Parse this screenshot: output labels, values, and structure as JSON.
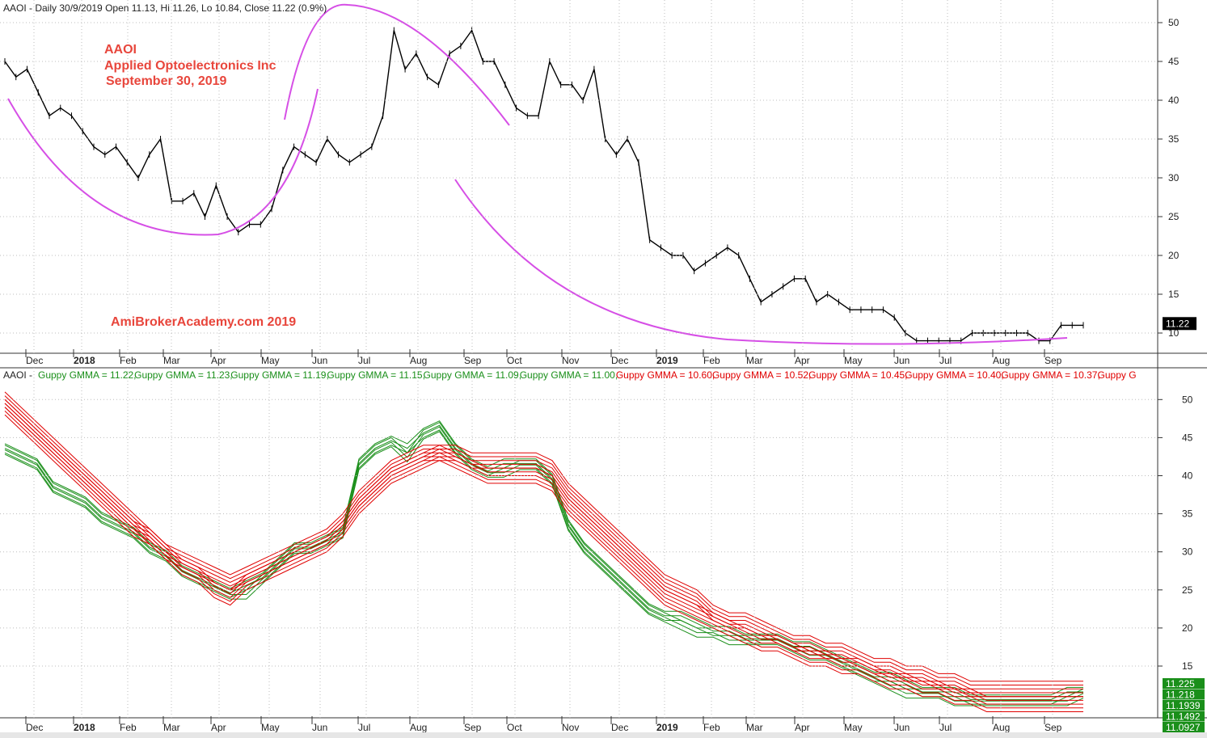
{
  "header_top": {
    "text": "AAOI - Daily 30/9/2019 Open 11.13, Hi 11.26, Lo 10.84, Close 11.22 (0.9%)"
  },
  "annotation": {
    "line1": "AAOI",
    "line2": "Applied Optoelectronics Inc",
    "line3": "September 30, 2019",
    "watermark": "AmiBrokerAcademy.com   2019",
    "color": "#e8463c"
  },
  "header_bottom": {
    "prefix": "AAOI - ",
    "items": [
      {
        "text": "Guppy GMMA = 11.22,",
        "color": "#1a8f1a"
      },
      {
        "text": "Guppy GMMA = 11.23,",
        "color": "#1a8f1a"
      },
      {
        "text": "Guppy GMMA = 11.19,",
        "color": "#1a8f1a"
      },
      {
        "text": "Guppy GMMA = 11.15,",
        "color": "#1a8f1a"
      },
      {
        "text": "Guppy GMMA = 11.09,",
        "color": "#1a8f1a"
      },
      {
        "text": "Guppy GMMA = 11.00,",
        "color": "#1a8f1a"
      },
      {
        "text": "Guppy GMMA = 10.60,",
        "color": "#e00000"
      },
      {
        "text": "Guppy GMMA = 10.52,",
        "color": "#e00000"
      },
      {
        "text": "Guppy GMMA = 10.45,",
        "color": "#e00000"
      },
      {
        "text": "Guppy GMMA = 10.40,",
        "color": "#e00000"
      },
      {
        "text": "Guppy GMMA = 10.37,",
        "color": "#e00000"
      },
      {
        "text": "Guppy G",
        "color": "#e00000"
      }
    ]
  },
  "months": [
    "Dec",
    "2018",
    "Feb",
    "Mar",
    "Apr",
    "May",
    "Jun",
    "Jul",
    "Aug",
    "Sep",
    "Oct",
    "Nov",
    "Dec",
    "2019",
    "Feb",
    "Mar",
    "Apr",
    "May",
    "Jun",
    "Jul",
    "Aug",
    "Sep"
  ],
  "bold_months": [
    "2018",
    "2019"
  ],
  "chart_data": [
    {
      "type": "line",
      "title": "AAOI - Daily 30/9/2019 Open 11.13, Hi 11.26, Lo 10.84, Close 11.22 (0.9%)",
      "ylim": [
        8,
        53
      ],
      "yticks": [
        10,
        15,
        20,
        25,
        30,
        35,
        40,
        45,
        50
      ],
      "last_value_label": "11.22",
      "series": [
        {
          "values": [
            45,
            43,
            44,
            41,
            38,
            39,
            38,
            36,
            34,
            33,
            34,
            32,
            30,
            33,
            35,
            27,
            27,
            28,
            25,
            29,
            25,
            23,
            24,
            24,
            26,
            31,
            34,
            33,
            32,
            35,
            33,
            32,
            33,
            34,
            38,
            49,
            44,
            46,
            43,
            42,
            46,
            47,
            49,
            45,
            45,
            42,
            39,
            38,
            38,
            45,
            42,
            42,
            40,
            44,
            35,
            33,
            35,
            32,
            22,
            21,
            20,
            20,
            18,
            19,
            20,
            21,
            20,
            17,
            14,
            15,
            16,
            17,
            17,
            14,
            15,
            14,
            13,
            13,
            13,
            13,
            12,
            10,
            9,
            9,
            9,
            9,
            9,
            10,
            10,
            10,
            10,
            10,
            10,
            9,
            9,
            11,
            11,
            11
          ]
        }
      ]
    },
    {
      "type": "line",
      "title": "",
      "ylim": [
        7,
        53
      ],
      "yticks": [
        15,
        20,
        25,
        30,
        35,
        40,
        45,
        50
      ],
      "value_labels": [
        "11.225",
        "11.218",
        "11.1939",
        "11.1492",
        "11.0927"
      ],
      "series": [
        {
          "name": "Guppy GMMA",
          "color": "#1a8f1a",
          "values": [
            44,
            43,
            42,
            39,
            38,
            37,
            35,
            34,
            33,
            31,
            30,
            28,
            27,
            26,
            25,
            25,
            27,
            29,
            31,
            31,
            32,
            33,
            42,
            44,
            45,
            43,
            46,
            47,
            44,
            42,
            41,
            41,
            42,
            42,
            40,
            34,
            31,
            29,
            27,
            25,
            23,
            22,
            21,
            20,
            20,
            19,
            19,
            19,
            19,
            18,
            17,
            17,
            16,
            15,
            14,
            13,
            12,
            12,
            12,
            11,
            11,
            11,
            11,
            11,
            11,
            11,
            11,
            12
          ]
        },
        {
          "name": "Guppy GMMA",
          "color": "#1a8f1a",
          "values": [
            43,
            42,
            41,
            38,
            37,
            36,
            34,
            33,
            32,
            30,
            29,
            27,
            26,
            25,
            24,
            25,
            26,
            28,
            30,
            30,
            31,
            32,
            41,
            43,
            44,
            43,
            45,
            46,
            43,
            41,
            40,
            41,
            41,
            41,
            39,
            33,
            30,
            28,
            26,
            24,
            22,
            21,
            21,
            20,
            19,
            19,
            18,
            18,
            18,
            17,
            17,
            16,
            15,
            14,
            13,
            13,
            12,
            11,
            11,
            11,
            10,
            10,
            10,
            10,
            10,
            10,
            11,
            11
          ]
        },
        {
          "name": "Guppy GMMA",
          "color": "#e00000",
          "values": [
            51,
            49,
            47,
            45,
            43,
            41,
            39,
            37,
            35,
            33,
            31,
            29,
            28,
            26,
            25,
            27,
            28,
            29,
            30,
            31,
            32,
            34,
            37,
            39,
            41,
            42,
            43,
            44,
            43,
            42,
            41,
            41,
            41,
            41,
            40,
            37,
            35,
            33,
            31,
            29,
            27,
            25,
            24,
            23,
            22,
            21,
            20,
            19,
            19,
            18,
            17,
            17,
            16,
            16,
            15,
            14,
            14,
            13,
            13,
            12,
            12,
            11,
            11,
            11,
            11,
            11,
            11,
            11
          ]
        },
        {
          "name": "Guppy GMMA",
          "color": "#e00000",
          "values": [
            48,
            46,
            44,
            42,
            40,
            38,
            36,
            34,
            32,
            31,
            29,
            28,
            27,
            26,
            25,
            26,
            27,
            28,
            29,
            30,
            31,
            33,
            36,
            38,
            40,
            41,
            42,
            42,
            42,
            41,
            41,
            41,
            41,
            41,
            40,
            37,
            35,
            33,
            31,
            29,
            27,
            25,
            24,
            23,
            21,
            20,
            20,
            19,
            18,
            17,
            17,
            16,
            16,
            15,
            14,
            14,
            13,
            13,
            12,
            12,
            11,
            11,
            11,
            11,
            11,
            11,
            11,
            11
          ]
        }
      ]
    }
  ]
}
